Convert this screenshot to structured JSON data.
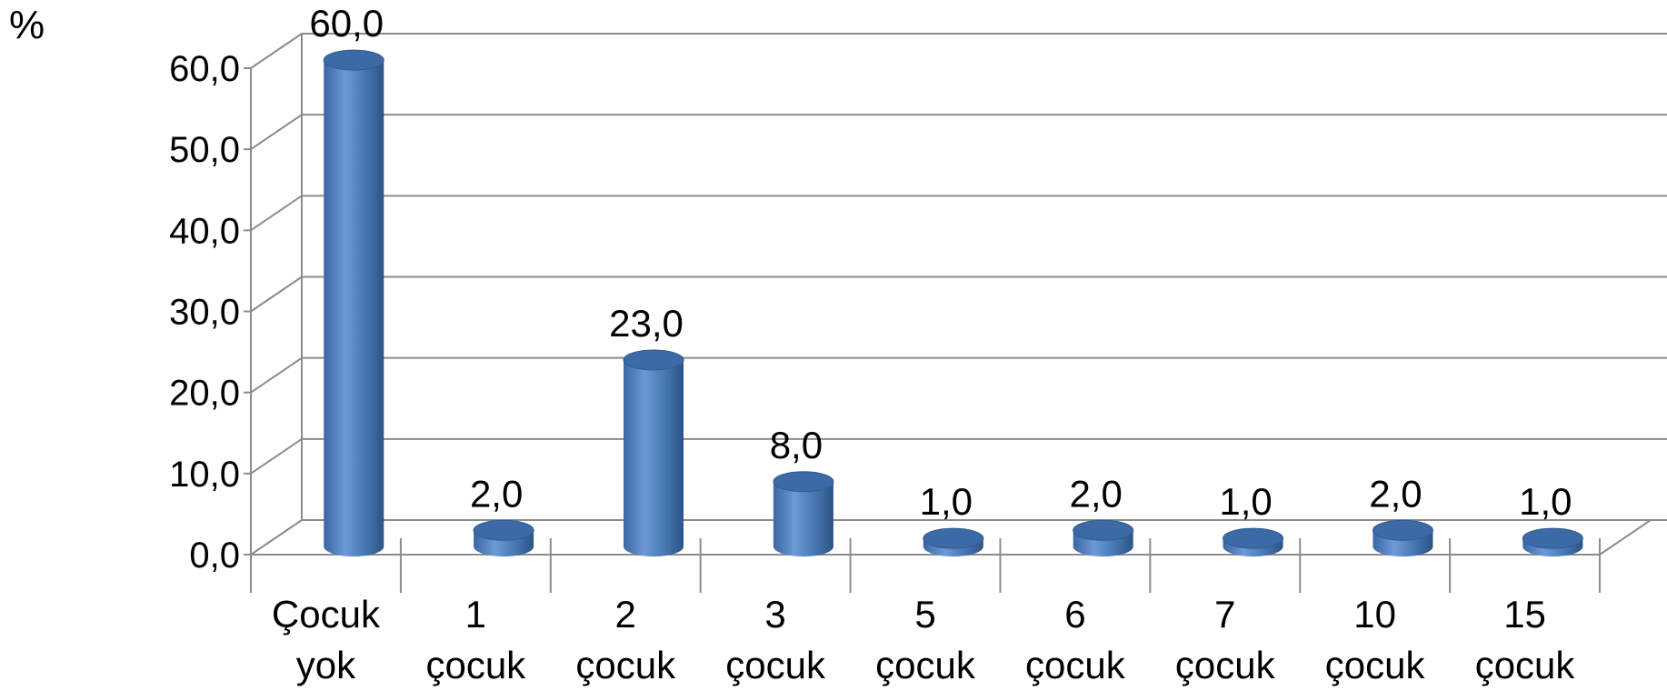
{
  "chart_data": {
    "type": "bar",
    "style": "3d-cylinder",
    "y_unit_label": "%",
    "categories": [
      [
        "Çocuk",
        "yok"
      ],
      [
        "1",
        "çocuk"
      ],
      [
        "2",
        "çocuk"
      ],
      [
        "3",
        "çocuk"
      ],
      [
        "5",
        "çocuk"
      ],
      [
        "6",
        "çocuk"
      ],
      [
        "7",
        "çocuk"
      ],
      [
        "10",
        "çocuk"
      ],
      [
        "15",
        "çocuk"
      ]
    ],
    "values": [
      60.0,
      2.0,
      23.0,
      8.0,
      1.0,
      2.0,
      1.0,
      2.0,
      1.0
    ],
    "value_labels": [
      "60,0",
      "2,0",
      "23,0",
      "8,0",
      "1,0",
      "2,0",
      "1,0",
      "2,0",
      "1,0"
    ],
    "ylim": [
      0,
      60
    ],
    "y_ticks": [
      0,
      10,
      20,
      30,
      40,
      50,
      60
    ],
    "y_tick_labels": [
      "0,0",
      "10,0",
      "20,0",
      "30,0",
      "40,0",
      "50,0",
      "60,0"
    ],
    "grid": true,
    "legend": "none",
    "colors": {
      "bar": "#4f81bd",
      "grid": "#8c8c8c"
    }
  }
}
